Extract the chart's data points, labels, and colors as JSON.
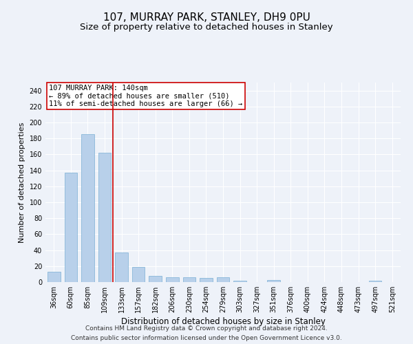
{
  "title": "107, MURRAY PARK, STANLEY, DH9 0PU",
  "subtitle": "Size of property relative to detached houses in Stanley",
  "xlabel": "Distribution of detached houses by size in Stanley",
  "ylabel": "Number of detached properties",
  "categories": [
    "36sqm",
    "60sqm",
    "85sqm",
    "109sqm",
    "133sqm",
    "157sqm",
    "182sqm",
    "206sqm",
    "230sqm",
    "254sqm",
    "279sqm",
    "303sqm",
    "327sqm",
    "351sqm",
    "376sqm",
    "400sqm",
    "424sqm",
    "448sqm",
    "473sqm",
    "497sqm",
    "521sqm"
  ],
  "values": [
    13,
    137,
    185,
    162,
    37,
    19,
    8,
    6,
    6,
    5,
    6,
    2,
    0,
    3,
    0,
    0,
    0,
    0,
    0,
    2,
    0
  ],
  "bar_color": "#b8d0ea",
  "bar_edge_color": "#7aafd4",
  "ylim": [
    0,
    250
  ],
  "yticks": [
    0,
    20,
    40,
    60,
    80,
    100,
    120,
    140,
    160,
    180,
    200,
    220,
    240
  ],
  "vline_x": 3.5,
  "vline_color": "#cc0000",
  "annotation_text": "107 MURRAY PARK: 140sqm\n← 89% of detached houses are smaller (510)\n11% of semi-detached houses are larger (66) →",
  "annotation_box_color": "#ffffff",
  "annotation_box_edge": "#cc0000",
  "footer1": "Contains HM Land Registry data © Crown copyright and database right 2024.",
  "footer2": "Contains public sector information licensed under the Open Government Licence v3.0.",
  "background_color": "#eef2f9",
  "grid_color": "#ffffff",
  "title_fontsize": 11,
  "subtitle_fontsize": 9.5,
  "ylabel_fontsize": 8,
  "xlabel_fontsize": 8.5,
  "tick_fontsize": 7,
  "annotation_fontsize": 7.5,
  "footer_fontsize": 6.5
}
